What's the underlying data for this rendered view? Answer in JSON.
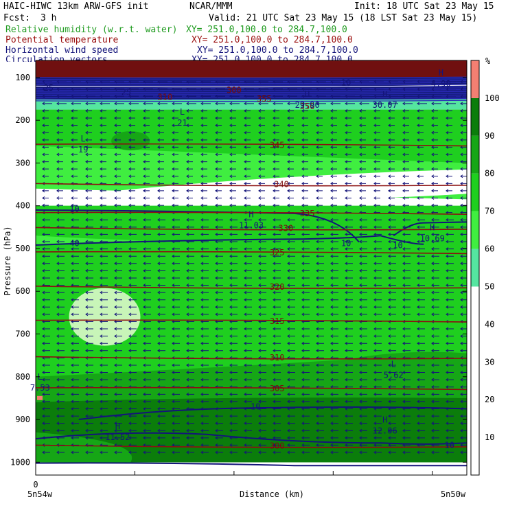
{
  "header": {
    "model": "HAIC-HIWC 13km ARW-GFS init",
    "agency": "NCAR/MMM",
    "init": "Init: 18 UTC Sat 23 May 15",
    "fcst_label": "Fcst:",
    "fcst_value": "3 h",
    "valid": "Valid: 21 UTC Sat 23 May 15 (18 LST Sat 23 May 15)",
    "fields": [
      {
        "name": "Relative humidity (w.r.t. water)",
        "xy": "XY= 251.0,100.0 to 284.7,100.0",
        "color": "#1f9b1f"
      },
      {
        "name": "Potential temperature",
        "xy": "XY= 251.0,100.0 to 284.7,100.0",
        "color": "#9b1010"
      },
      {
        "name": "Horizontal wind speed",
        "xy": "XY= 251.0,100.0 to 284.7,100.0",
        "color": "#14147a"
      },
      {
        "name": "Circulation vectors",
        "xy": "XY= 251.0,100.0 to 284.7,100.0",
        "color": "#14147a"
      }
    ]
  },
  "chart_data": {
    "type": "heatmap",
    "title": "",
    "xlabel": "Distance (km)",
    "ylabel": "Pressure (hPa)",
    "x_ticks": [
      "0"
    ],
    "x_endpoints": [
      "5n54w",
      "5n50w"
    ],
    "y_ticks": [
      100,
      200,
      300,
      400,
      500,
      600,
      700,
      800,
      900,
      1000
    ],
    "ylim": [
      1030,
      60
    ],
    "colorbar": {
      "unit": "%",
      "ticks": [
        10,
        20,
        30,
        40,
        50,
        60,
        70,
        80,
        90,
        100
      ],
      "bins": [
        {
          "from": 50,
          "to": 60,
          "color": "#55e5a0"
        },
        {
          "from": 60,
          "to": 70,
          "color": "#40ee40"
        },
        {
          "from": 70,
          "to": 80,
          "color": "#1fcf1f"
        },
        {
          "from": 80,
          "to": 90,
          "color": "#16a616"
        },
        {
          "from": 90,
          "to": 100,
          "color": "#0b7d0b"
        },
        {
          "from": 100,
          "to": 110,
          "color": "#f47f72"
        }
      ]
    },
    "theta_labels": [
      {
        "value": "345",
        "p": 258,
        "pos": 0.56
      },
      {
        "value": "340",
        "p": 350,
        "pos": 0.57
      },
      {
        "value": "335",
        "p": 418,
        "pos": 0.63
      },
      {
        "value": "330",
        "p": 453,
        "pos": 0.58
      },
      {
        "value": "325",
        "p": 510,
        "pos": 0.56
      },
      {
        "value": "320",
        "p": 590,
        "pos": 0.56
      },
      {
        "value": "315",
        "p": 670,
        "pos": 0.56
      },
      {
        "value": "310",
        "p": 755,
        "pos": 0.56
      },
      {
        "value": "305",
        "p": 828,
        "pos": 0.56
      },
      {
        "value": "300",
        "p": 962,
        "pos": 0.56
      },
      {
        "value": "300",
        "p": 130,
        "pos": 0.46
      },
      {
        "value": "310",
        "p": 146,
        "pos": 0.3
      },
      {
        "value": "350",
        "p": 168,
        "pos": 0.63
      },
      {
        "value": "355",
        "p": 150,
        "pos": 0.53
      }
    ],
    "wind_labels": [
      {
        "value": "10",
        "p": 408,
        "pos": 0.09
      },
      {
        "value": "10",
        "p": 488,
        "pos": 0.72
      },
      {
        "value": "10",
        "p": 493,
        "pos": 0.84
      },
      {
        "value": "40",
        "p": 488,
        "pos": 0.09
      },
      {
        "value": "10",
        "p": 870,
        "pos": 0.51
      },
      {
        "value": "10",
        "p": 960,
        "pos": 0.96
      },
      {
        "value": "25",
        "p": 124,
        "pos": 0.03
      },
      {
        "value": "25",
        "p": 135,
        "pos": 0.21
      },
      {
        "value": "10",
        "p": 112,
        "pos": 0.72
      }
    ],
    "extrema": [
      {
        "type": "L",
        "value": "21",
        "p": 200,
        "pos": 0.34
      },
      {
        "type": "L",
        "value": "19",
        "p": 262,
        "pos": 0.11
      },
      {
        "type": "H",
        "value": "11.03",
        "p": 440,
        "pos": 0.5
      },
      {
        "type": "H",
        "value": "10.69",
        "p": 470,
        "pos": 0.92
      },
      {
        "type": "L",
        "value": "5.62",
        "p": 790,
        "pos": 0.83
      },
      {
        "type": "L",
        "value": "7.53",
        "p": 820,
        "pos": 0.01
      },
      {
        "type": "H",
        "value": "11.52",
        "p": 935,
        "pos": 0.19
      },
      {
        "type": "H",
        "value": "12.06",
        "p": 920,
        "pos": 0.81
      },
      {
        "type": "H",
        "value": "29.90",
        "p": 158,
        "pos": 0.63
      },
      {
        "type": "H",
        "value": "30.07",
        "p": 158,
        "pos": 0.81
      },
      {
        "type": "H",
        "value": "4.90",
        "p": 108,
        "pos": 0.94
      }
    ]
  }
}
